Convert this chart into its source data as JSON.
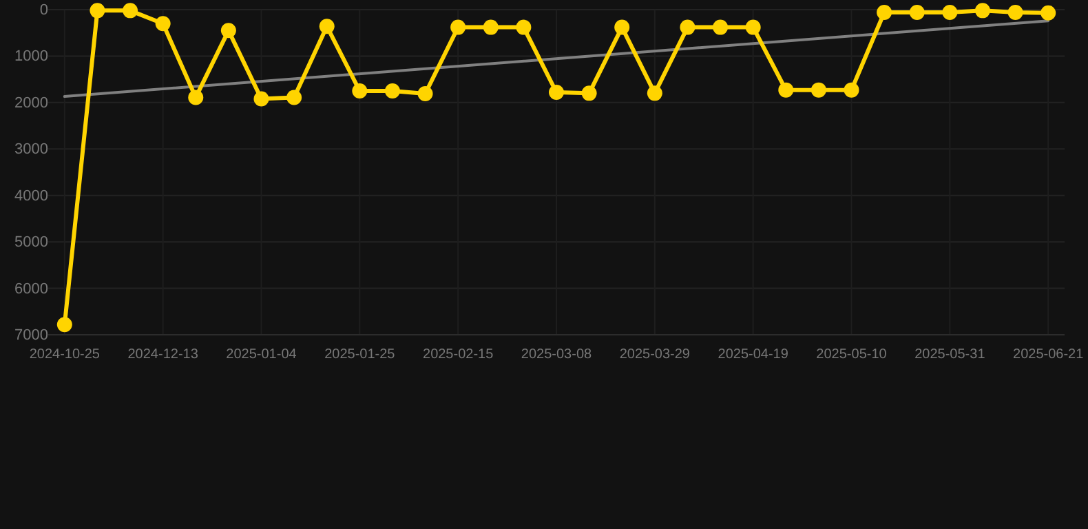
{
  "chart_data": {
    "type": "line",
    "categories": [
      "2024-10-25",
      null,
      null,
      "2024-12-13",
      null,
      null,
      "2025-01-04",
      null,
      null,
      "2025-01-25",
      null,
      null,
      "2025-02-15",
      null,
      null,
      "2025-03-08",
      null,
      null,
      "2025-03-29",
      null,
      null,
      "2025-04-19",
      null,
      null,
      "2025-05-10",
      null,
      null,
      "2025-05-31",
      null,
      null,
      "2025-06-21"
    ],
    "series": [
      {
        "color": "#ffd400",
        "values": [
          6780,
          20,
          20,
          300,
          1890,
          450,
          1920,
          1890,
          360,
          1750,
          1750,
          1810,
          380,
          380,
          380,
          1780,
          1800,
          380,
          1800,
          380,
          380,
          380,
          1730,
          1730,
          1730,
          60,
          60,
          60,
          20,
          60,
          70
        ]
      },
      {
        "type": "line",
        "color": "#808080",
        "marker": "none",
        "values": [
          1870,
          null,
          null,
          null,
          null,
          null,
          null,
          null,
          null,
          null,
          null,
          null,
          null,
          null,
          null,
          null,
          null,
          null,
          null,
          null,
          null,
          null,
          null,
          null,
          null,
          null,
          null,
          null,
          null,
          null,
          240
        ]
      }
    ],
    "ylim": [
      7000,
      0
    ],
    "yticks": [
      0,
      1000,
      2000,
      3000,
      4000,
      5000,
      6000,
      7000
    ],
    "grid": true,
    "marker": "circle"
  }
}
